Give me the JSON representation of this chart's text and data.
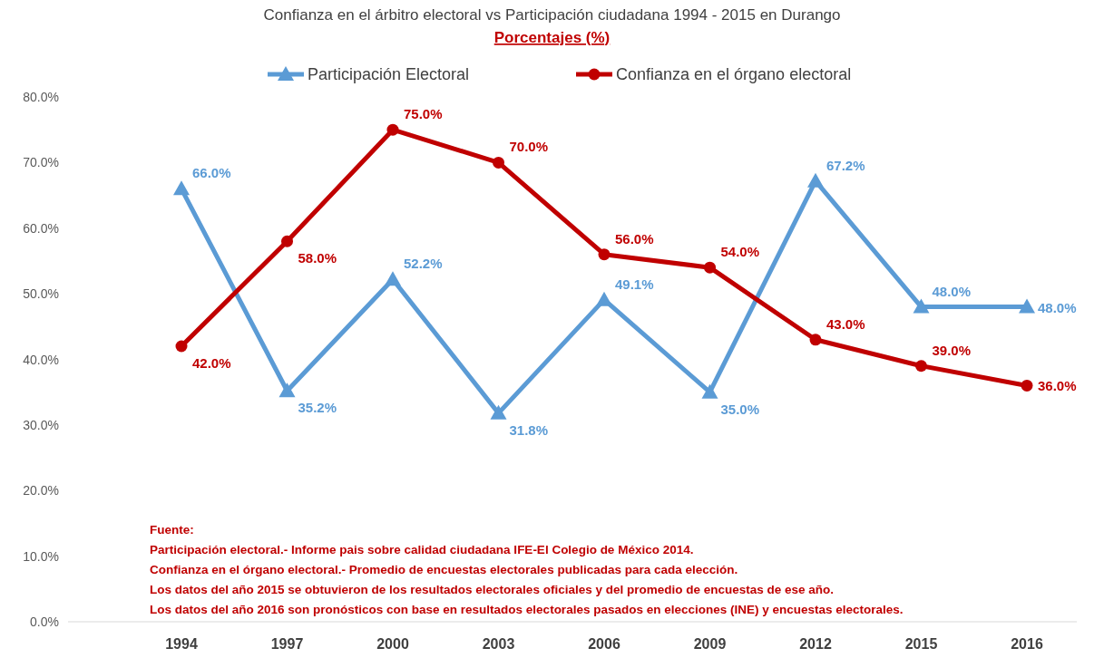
{
  "chart_data": {
    "type": "line",
    "title": "Confianza en el árbitro electoral vs Participación ciudadana 1994 - 2015 en Durango",
    "subtitle": "Porcentajes (%)",
    "categories": [
      "1994",
      "1997",
      "2000",
      "2003",
      "2006",
      "2009",
      "2012",
      "2015",
      "2016"
    ],
    "series": [
      {
        "name": "Participación Electoral",
        "color": "#5b9bd5",
        "marker": "triangle",
        "values": [
          66.0,
          35.2,
          52.2,
          31.8,
          49.1,
          35.0,
          67.2,
          48.0,
          48.0
        ],
        "value_labels": [
          "66.0%",
          "35.2%",
          "52.2%",
          "31.8%",
          "49.1%",
          "35.0%",
          "67.2%",
          "48.0%",
          "48.0%"
        ]
      },
      {
        "name": "Confianza en el órgano electoral",
        "color": "#c00000",
        "marker": "circle",
        "values": [
          42.0,
          58.0,
          75.0,
          70.0,
          56.0,
          54.0,
          43.0,
          39.0,
          36.0
        ],
        "value_labels": [
          "42.0%",
          "58.0%",
          "75.0%",
          "70.0%",
          "56.0%",
          "54.0%",
          "43.0%",
          "39.0%",
          "36.0%"
        ]
      }
    ],
    "ylim": [
      0,
      80
    ],
    "yticks": [
      {
        "value": 0,
        "label": "0.0%"
      },
      {
        "value": 10,
        "label": "10.0%"
      },
      {
        "value": 20,
        "label": "20.0%"
      },
      {
        "value": 30,
        "label": "30.0%"
      },
      {
        "value": 40,
        "label": "40.0%"
      },
      {
        "value": 50,
        "label": "50.0%"
      },
      {
        "value": 60,
        "label": "60.0%"
      },
      {
        "value": 70,
        "label": "70.0%"
      },
      {
        "value": 80,
        "label": "80.0%"
      }
    ],
    "grid": false,
    "legend": "top",
    "line_style": "solid",
    "annotations": [
      "Fuente:",
      "Participación electoral.- Informe pais sobre calidad ciudadana IFE-El Colegio de México 2014.",
      "Confianza en el órgano electoral.- Promedio de encuestas electorales publicadas para cada elección.",
      "Los datos del año 2015 se obtuvieron de los resultados electorales oficiales y del promedio de encuestas de ese año.",
      "Los datos del año 2016 son pronósticos con base en resultados electorales pasados en elecciones (INE) y encuestas electorales."
    ]
  }
}
